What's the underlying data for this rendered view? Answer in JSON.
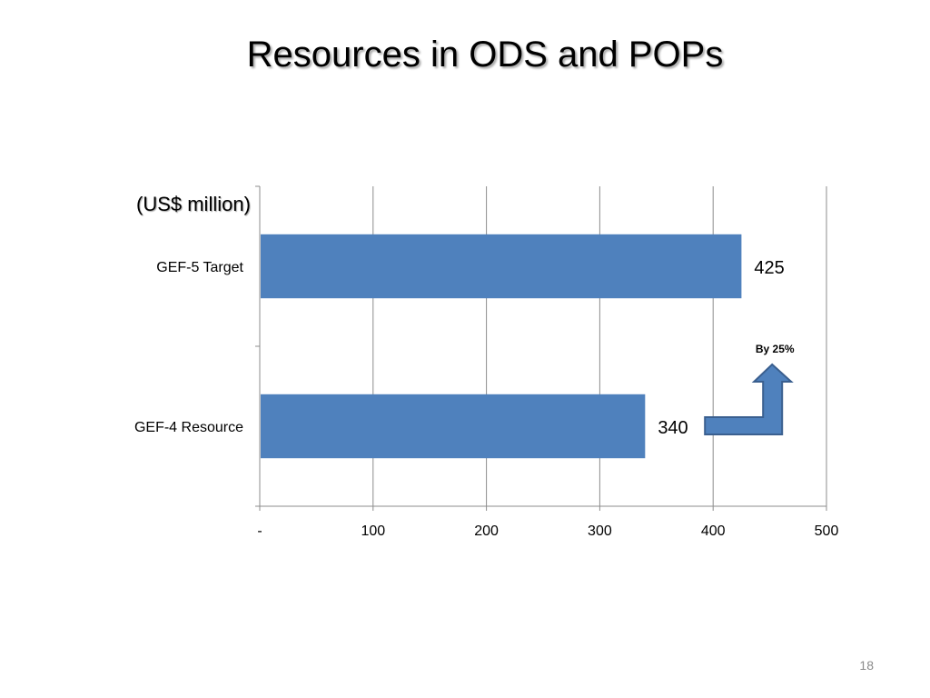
{
  "slide": {
    "title": "Resources in ODS and POPs",
    "unit_label": "(US$ million)",
    "page_number": "18"
  },
  "chart_data": {
    "type": "bar",
    "orientation": "horizontal",
    "categories": [
      "GEF-5 Target",
      "GEF-4 Resource"
    ],
    "values": [
      425,
      340
    ],
    "data_labels": [
      "425",
      "340"
    ],
    "xlim": [
      0,
      500
    ],
    "x_ticks": [
      0,
      100,
      200,
      300,
      400,
      500
    ],
    "x_tick_labels": [
      "-",
      "100",
      "200",
      "300",
      "400",
      "500"
    ],
    "grid": "vertical",
    "annotation": "By 25%",
    "bar_color": "#4f81bd",
    "arrow_color": "#4f81bd"
  }
}
